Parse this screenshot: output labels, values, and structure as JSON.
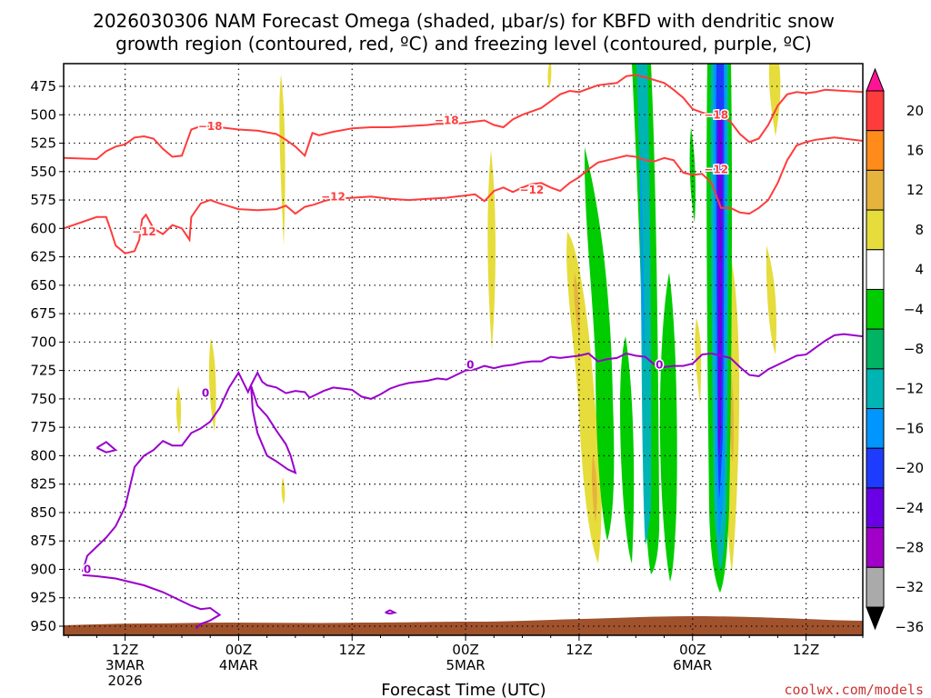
{
  "chart_data": {
    "type": "heatmap",
    "title_line1": "2026030306 NAM Forecast Omega (shaded, μbar/s) for KBFD with dendritic snow",
    "title_line2": "growth region (contoured, red, ºC) and freezing level (contoured, purple, ºC)",
    "xlabel": "Forecast Time (UTC)",
    "credit": "coolwx.com/models",
    "x_range_hours": [
      -0.5,
      84.0
    ],
    "y_range_mb": [
      455,
      958
    ],
    "y_ticks": [
      "475",
      "500",
      "525",
      "550",
      "575",
      "600",
      "625",
      "650",
      "675",
      "700",
      "725",
      "750",
      "775",
      "800",
      "825",
      "850",
      "875",
      "900",
      "925",
      "950"
    ],
    "x_ticks": [
      {
        "hour": 6,
        "lines": [
          "12Z",
          "3MAR",
          "2026"
        ]
      },
      {
        "hour": 18,
        "lines": [
          "00Z",
          "4MAR"
        ]
      },
      {
        "hour": 30,
        "lines": [
          "12Z"
        ]
      },
      {
        "hour": 42,
        "lines": [
          "00Z",
          "5MAR"
        ]
      },
      {
        "hour": 54,
        "lines": [
          "12Z"
        ]
      },
      {
        "hour": 66,
        "lines": [
          "00Z",
          "6MAR"
        ]
      },
      {
        "hour": 78,
        "lines": [
          "12Z"
        ]
      }
    ],
    "colorbar": {
      "ticks": [
        "20",
        "16",
        "12",
        "8",
        "4",
        "−4",
        "−8",
        "−12",
        "−16",
        "−20",
        "−24",
        "−28",
        "−32",
        "−36"
      ],
      "colors": [
        "#ff1493",
        "#ff3c3c",
        "#ff8c1a",
        "#e6b43c",
        "#e6dc3c",
        "#ffffff",
        "#00cc00",
        "#00b464",
        "#00b4b4",
        "#0096ff",
        "#1e3cff",
        "#6a00e6",
        "#a000c8",
        "#aaaaaa",
        "#000000"
      ]
    },
    "dgz_line_color": "#ff3c3c",
    "freezing_line_color": "#9900cc",
    "terrain_color": "#a0522d",
    "dgz_minus18": [
      [
        -0.5,
        538
      ],
      [
        3,
        539
      ],
      [
        4,
        532
      ],
      [
        5,
        528
      ],
      [
        6,
        526
      ],
      [
        7,
        520
      ],
      [
        8,
        519
      ],
      [
        9,
        521
      ],
      [
        10,
        530
      ],
      [
        11,
        537
      ],
      [
        12,
        536
      ],
      [
        13,
        513
      ],
      [
        14,
        510
      ],
      [
        16,
        511
      ],
      [
        18,
        513
      ],
      [
        20,
        514
      ],
      [
        22,
        517
      ],
      [
        23,
        522
      ],
      [
        24,
        528
      ],
      [
        25,
        536
      ],
      [
        25.8,
        516
      ],
      [
        26.5,
        518
      ],
      [
        28,
        515
      ],
      [
        30,
        512
      ],
      [
        32,
        511
      ],
      [
        34,
        511
      ],
      [
        36,
        510
      ],
      [
        38,
        509
      ],
      [
        39,
        508
      ],
      [
        41,
        508
      ],
      [
        43,
        506
      ],
      [
        44,
        505
      ],
      [
        45,
        509
      ],
      [
        46,
        511
      ],
      [
        47,
        504
      ],
      [
        48,
        500
      ],
      [
        50,
        494
      ],
      [
        51,
        488
      ],
      [
        52,
        482
      ],
      [
        53,
        479
      ],
      [
        54,
        480
      ],
      [
        55,
        477
      ],
      [
        56,
        474
      ],
      [
        57,
        473
      ],
      [
        58,
        472
      ],
      [
        59,
        466
      ],
      [
        60,
        465
      ],
      [
        61,
        467
      ],
      [
        63,
        472
      ],
      [
        64,
        478
      ],
      [
        65,
        485
      ],
      [
        66,
        495
      ],
      [
        67,
        498
      ],
      [
        68,
        500
      ],
      [
        69,
        501
      ],
      [
        70,
        506
      ],
      [
        71,
        517
      ],
      [
        72,
        524
      ],
      [
        73,
        521
      ],
      [
        74,
        509
      ],
      [
        75,
        492
      ],
      [
        76,
        482
      ],
      [
        77,
        480
      ],
      [
        78,
        481
      ],
      [
        79,
        480
      ],
      [
        80,
        478
      ],
      [
        82,
        479
      ],
      [
        84,
        480
      ]
    ],
    "dgz_minus12": [
      [
        -0.5,
        600
      ],
      [
        3,
        590
      ],
      [
        4,
        590
      ],
      [
        4.5,
        602
      ],
      [
        5,
        615
      ],
      [
        6,
        622
      ],
      [
        7,
        620
      ],
      [
        7.5,
        610
      ],
      [
        7.8,
        592
      ],
      [
        8.2,
        588
      ],
      [
        9,
        600
      ],
      [
        10,
        605
      ],
      [
        11,
        597
      ],
      [
        12,
        600
      ],
      [
        12.8,
        610
      ],
      [
        13,
        590
      ],
      [
        14,
        578
      ],
      [
        15,
        575
      ],
      [
        16,
        578
      ],
      [
        18,
        583
      ],
      [
        20,
        584
      ],
      [
        22,
        583
      ],
      [
        23,
        580
      ],
      [
        24,
        587
      ],
      [
        25,
        581
      ],
      [
        26,
        579
      ],
      [
        27,
        576
      ],
      [
        28,
        574
      ],
      [
        30,
        573
      ],
      [
        32,
        572
      ],
      [
        34,
        574
      ],
      [
        36,
        575
      ],
      [
        38,
        574
      ],
      [
        40,
        573
      ],
      [
        41,
        572
      ],
      [
        42,
        571
      ],
      [
        43,
        570
      ],
      [
        44,
        576
      ],
      [
        45,
        567
      ],
      [
        46,
        564
      ],
      [
        47,
        568
      ],
      [
        48,
        564
      ],
      [
        49,
        561
      ],
      [
        50,
        560
      ],
      [
        51,
        564
      ],
      [
        52,
        567
      ],
      [
        53,
        560
      ],
      [
        54,
        555
      ],
      [
        55,
        548
      ],
      [
        56,
        542
      ],
      [
        57,
        540
      ],
      [
        58,
        538
      ],
      [
        59,
        536
      ],
      [
        60,
        537
      ],
      [
        61,
        540
      ],
      [
        62,
        541
      ],
      [
        63,
        538
      ],
      [
        64,
        540
      ],
      [
        65,
        551
      ],
      [
        66,
        553
      ],
      [
        67,
        552
      ],
      [
        68,
        560
      ],
      [
        69,
        582
      ],
      [
        70,
        582
      ],
      [
        71,
        586
      ],
      [
        72,
        587
      ],
      [
        73,
        582
      ],
      [
        74,
        575
      ],
      [
        75,
        560
      ],
      [
        76,
        540
      ],
      [
        77,
        527
      ],
      [
        78,
        524
      ],
      [
        79,
        522
      ],
      [
        80,
        521
      ],
      [
        81,
        520
      ],
      [
        82,
        521
      ],
      [
        84,
        523
      ]
    ],
    "freezing_main": [
      [
        17,
        740
      ],
      [
        18,
        727
      ],
      [
        19,
        744
      ],
      [
        19.3,
        738
      ],
      [
        20,
        727
      ],
      [
        20.5,
        735
      ],
      [
        21,
        738
      ],
      [
        22,
        740
      ],
      [
        23,
        745
      ],
      [
        24,
        743
      ],
      [
        25,
        744
      ],
      [
        25.5,
        749
      ],
      [
        26,
        747
      ],
      [
        27,
        743
      ],
      [
        28,
        740
      ],
      [
        29,
        741
      ],
      [
        30,
        742
      ],
      [
        31,
        748
      ],
      [
        32,
        750
      ],
      [
        33,
        746
      ],
      [
        34,
        741
      ],
      [
        35,
        738
      ],
      [
        36,
        736
      ],
      [
        37,
        735
      ],
      [
        38,
        734
      ],
      [
        39,
        732
      ],
      [
        40,
        733
      ],
      [
        41,
        729
      ],
      [
        42,
        725
      ],
      [
        43,
        724
      ],
      [
        44,
        721
      ],
      [
        45,
        723
      ],
      [
        46,
        721
      ],
      [
        47,
        720
      ],
      [
        48,
        718
      ],
      [
        49,
        717
      ],
      [
        50,
        717
      ],
      [
        51,
        713
      ],
      [
        52,
        714
      ],
      [
        53,
        713
      ],
      [
        54,
        712
      ],
      [
        55,
        710
      ],
      [
        56,
        717
      ],
      [
        57,
        715
      ],
      [
        58,
        714
      ],
      [
        59,
        710
      ],
      [
        60,
        712
      ],
      [
        61,
        713
      ],
      [
        62,
        720
      ],
      [
        63,
        722
      ],
      [
        64,
        721
      ],
      [
        65,
        721
      ],
      [
        66,
        719
      ],
      [
        67,
        711
      ],
      [
        68,
        710
      ],
      [
        69,
        712
      ],
      [
        70,
        714
      ],
      [
        71,
        722
      ],
      [
        72,
        729
      ],
      [
        73,
        730
      ],
      [
        74,
        724
      ],
      [
        75,
        720
      ],
      [
        76,
        716
      ],
      [
        77,
        712
      ],
      [
        78,
        711
      ],
      [
        79,
        705
      ],
      [
        80,
        699
      ],
      [
        81,
        694
      ],
      [
        82,
        693
      ],
      [
        84,
        695
      ]
    ],
    "freezing_loop": [
      [
        17,
        740
      ],
      [
        16,
        758
      ],
      [
        15,
        770
      ],
      [
        14,
        776
      ],
      [
        13,
        780
      ],
      [
        12,
        791
      ],
      [
        11,
        791
      ],
      [
        10,
        787
      ],
      [
        9,
        795
      ],
      [
        8,
        800
      ],
      [
        7,
        810
      ],
      [
        6,
        845
      ],
      [
        5,
        862
      ],
      [
        4,
        872
      ],
      [
        3,
        880
      ],
      [
        2,
        888
      ],
      [
        1.5,
        902
      ]
    ],
    "freezing_inner": [
      [
        19.3,
        738
      ],
      [
        20,
        756
      ],
      [
        21,
        765
      ],
      [
        22,
        778
      ],
      [
        23,
        790
      ],
      [
        23.5,
        800
      ],
      [
        24,
        815
      ],
      [
        23.2,
        812
      ],
      [
        22,
        805
      ],
      [
        21,
        800
      ],
      [
        20,
        780
      ],
      [
        19.5,
        760
      ],
      [
        19.3,
        738
      ]
    ],
    "freezing_bottom": [
      [
        1.5,
        905
      ],
      [
        3,
        906
      ],
      [
        5,
        908
      ],
      [
        6,
        910
      ],
      [
        8,
        914
      ],
      [
        10,
        920
      ],
      [
        12,
        928
      ],
      [
        13,
        932
      ],
      [
        14,
        935
      ],
      [
        15,
        934
      ],
      [
        16,
        940
      ],
      [
        15,
        945
      ],
      [
        14,
        948
      ],
      [
        13.5,
        952
      ]
    ],
    "freezing_small1": [
      [
        3,
        793
      ],
      [
        4,
        788
      ],
      [
        5,
        795
      ],
      [
        4,
        797
      ],
      [
        3,
        793
      ]
    ],
    "freezing_small2": [
      [
        33.5,
        938
      ],
      [
        34,
        936
      ],
      [
        34.5,
        938
      ],
      [
        34,
        939
      ],
      [
        33.5,
        938
      ]
    ],
    "contour_labels": [
      {
        "text": "−18",
        "hour": 15,
        "mb": 510,
        "color": "red"
      },
      {
        "text": "−18",
        "hour": 40,
        "mb": 505,
        "color": "red"
      },
      {
        "text": "−18",
        "hour": 68.5,
        "mb": 500,
        "color": "red"
      },
      {
        "text": "−12",
        "hour": 8,
        "mb": 603,
        "color": "red"
      },
      {
        "text": "−12",
        "hour": 28,
        "mb": 572,
        "color": "red"
      },
      {
        "text": "−12",
        "hour": 49,
        "mb": 566,
        "color": "red"
      },
      {
        "text": "−12",
        "hour": 68.5,
        "mb": 548,
        "color": "red"
      },
      {
        "text": "0",
        "hour": 14.5,
        "mb": 745,
        "color": "purple"
      },
      {
        "text": "0",
        "hour": 2,
        "mb": 900,
        "color": "purple"
      },
      {
        "text": "0",
        "hour": 42.5,
        "mb": 720,
        "color": "purple"
      },
      {
        "text": "0",
        "hour": 62.5,
        "mb": 720,
        "color": "purple"
      }
    ]
  }
}
